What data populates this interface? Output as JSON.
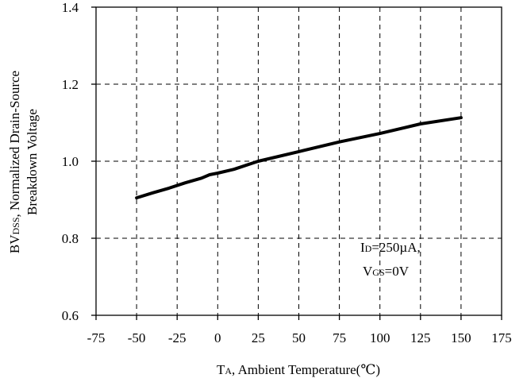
{
  "chart_data": {
    "type": "line",
    "xlabel": {
      "main": "T",
      "sub": "A",
      "rest": ", Ambient Temperature(℃)"
    },
    "ylabel": {
      "line1_pre": "BV",
      "line1_sub": "DSS",
      "line1_rest": ", Normalized Drain-Source",
      "line2": "Breakdown Voltage"
    },
    "xlim": [
      -75,
      175
    ],
    "ylim": [
      0.6,
      1.4
    ],
    "x_ticks": [
      -75,
      -50,
      -25,
      0,
      25,
      50,
      75,
      100,
      125,
      150,
      175
    ],
    "x_tick_labels": [
      "-75",
      "-50",
      "-25",
      "0",
      "25",
      "50",
      "75",
      "100",
      "125",
      "150",
      "175"
    ],
    "y_ticks": [
      0.6,
      0.8,
      1.0,
      1.2,
      1.4
    ],
    "y_tick_labels": [
      "0.6",
      "0.8",
      "1.0",
      "1.2",
      "1.4"
    ],
    "grid": "dashed",
    "series": [
      {
        "x": [
          -50,
          -40,
          -30,
          -20,
          -10,
          -5,
          0,
          10,
          25,
          50,
          75,
          100,
          125,
          150
        ],
        "y": [
          0.905,
          0.918,
          0.93,
          0.944,
          0.956,
          0.965,
          0.969,
          0.979,
          1.0,
          1.025,
          1.05,
          1.072,
          1.097,
          1.113
        ]
      }
    ],
    "annotations": [
      {
        "pre": "I",
        "sub": "D",
        "rest": "=250µA,"
      },
      {
        "pre": "V",
        "sub": "GS",
        "rest": "=0V"
      }
    ]
  }
}
